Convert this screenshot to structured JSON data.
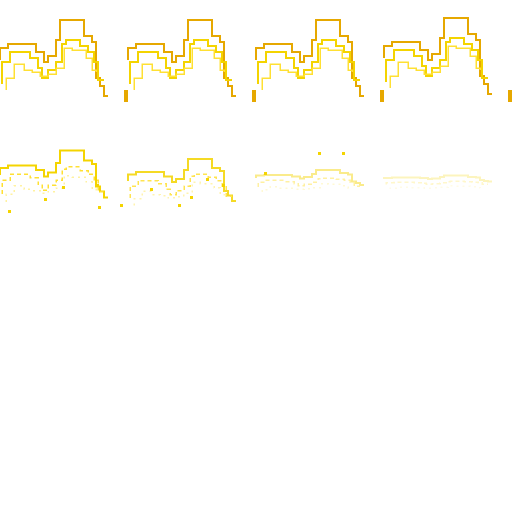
{
  "sprite_sheet": {
    "background": "#ffffff",
    "palette": {
      "primary": "#f4d400",
      "secondary": "#ffe033",
      "shade": "#e6a800",
      "faint": "#fff2a0"
    },
    "rows": [
      {
        "name": "sprite-row-top",
        "frames": 4,
        "style": "solid outline"
      },
      {
        "name": "sprite-row-bottom",
        "frames": 4,
        "style": "fading dotted outline"
      }
    ]
  }
}
